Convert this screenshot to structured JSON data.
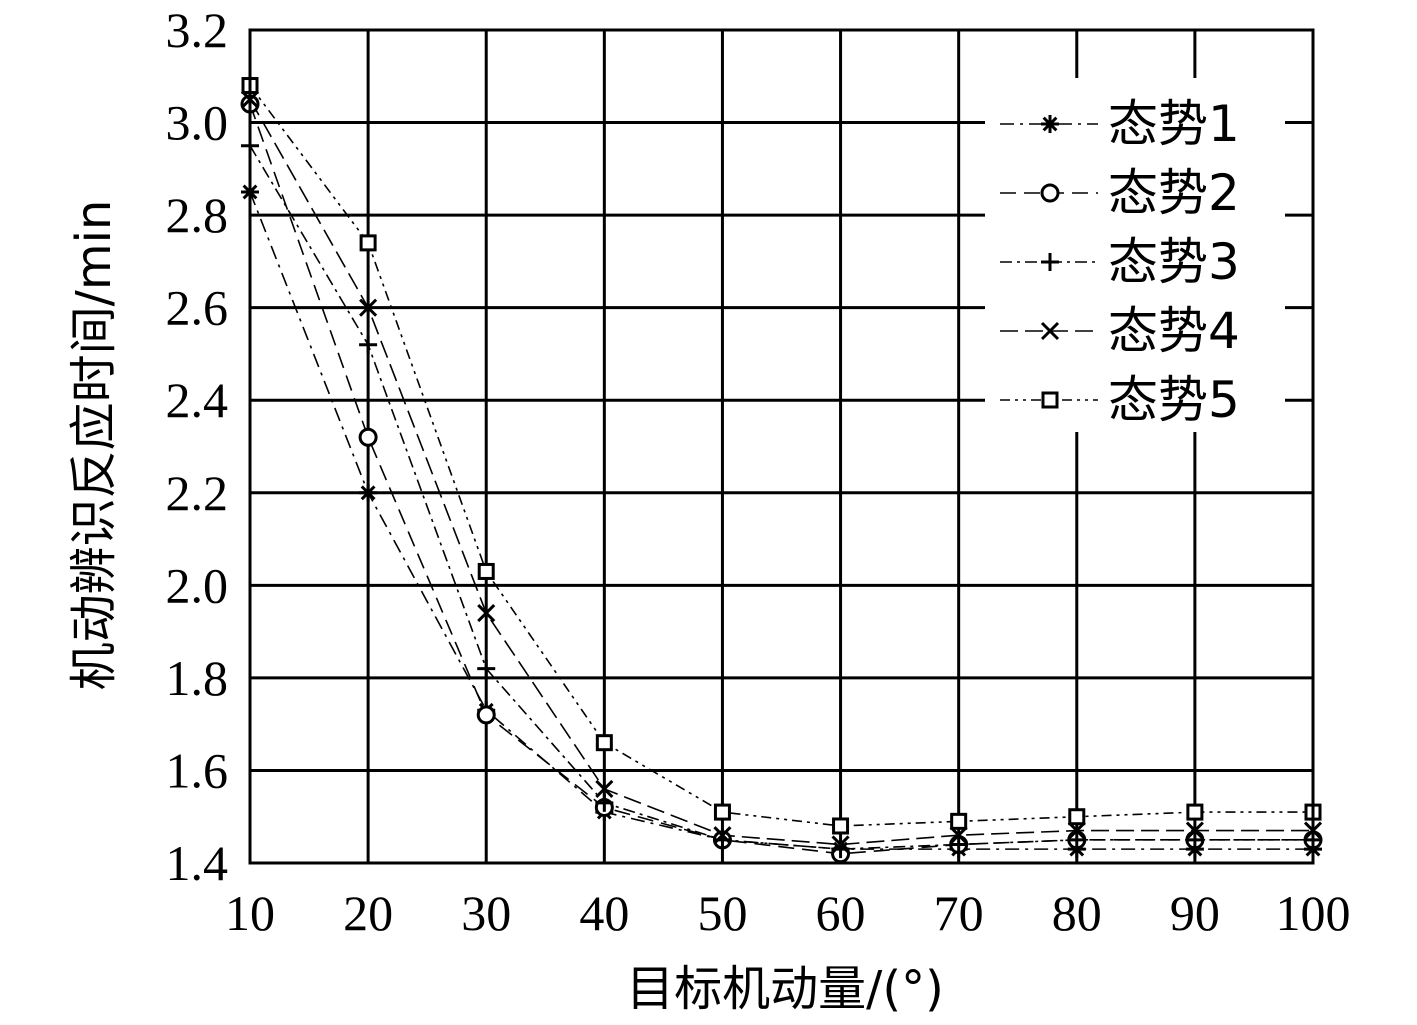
{
  "chart_data": {
    "type": "line",
    "xlabel": "目标机动量/(°)",
    "ylabel": "机动辨识反应时间/min",
    "xlim": [
      10,
      100
    ],
    "ylim": [
      1.4,
      3.2
    ],
    "grid": true,
    "legend_position": "top-right",
    "x": [
      10,
      20,
      30,
      40,
      50,
      60,
      70,
      80,
      90,
      100
    ],
    "x_ticks": [
      "10",
      "20",
      "30",
      "40",
      "50",
      "60",
      "70",
      "80",
      "90",
      "100"
    ],
    "y_ticks": [
      "1.4",
      "1.6",
      "1.8",
      "2.0",
      "2.2",
      "2.4",
      "2.6",
      "2.8",
      "3.0",
      "3.2"
    ],
    "series": [
      {
        "name": "态势1",
        "marker": "asterisk",
        "values": [
          2.85,
          2.2,
          1.73,
          1.51,
          1.45,
          1.43,
          1.43,
          1.43,
          1.43,
          1.43
        ]
      },
      {
        "name": "态势2",
        "marker": "circle",
        "values": [
          3.04,
          2.32,
          1.72,
          1.52,
          1.45,
          1.42,
          1.44,
          1.45,
          1.45,
          1.45
        ]
      },
      {
        "name": "态势3",
        "marker": "plus",
        "values": [
          2.95,
          2.52,
          1.82,
          1.53,
          1.45,
          1.43,
          1.44,
          1.45,
          1.45,
          1.45
        ]
      },
      {
        "name": "态势4",
        "marker": "x",
        "values": [
          3.05,
          2.6,
          1.94,
          1.56,
          1.46,
          1.44,
          1.46,
          1.47,
          1.47,
          1.47
        ]
      },
      {
        "name": "态势5",
        "marker": "square",
        "values": [
          3.08,
          2.74,
          2.03,
          1.66,
          1.51,
          1.48,
          1.49,
          1.5,
          1.51,
          1.51
        ]
      }
    ]
  }
}
